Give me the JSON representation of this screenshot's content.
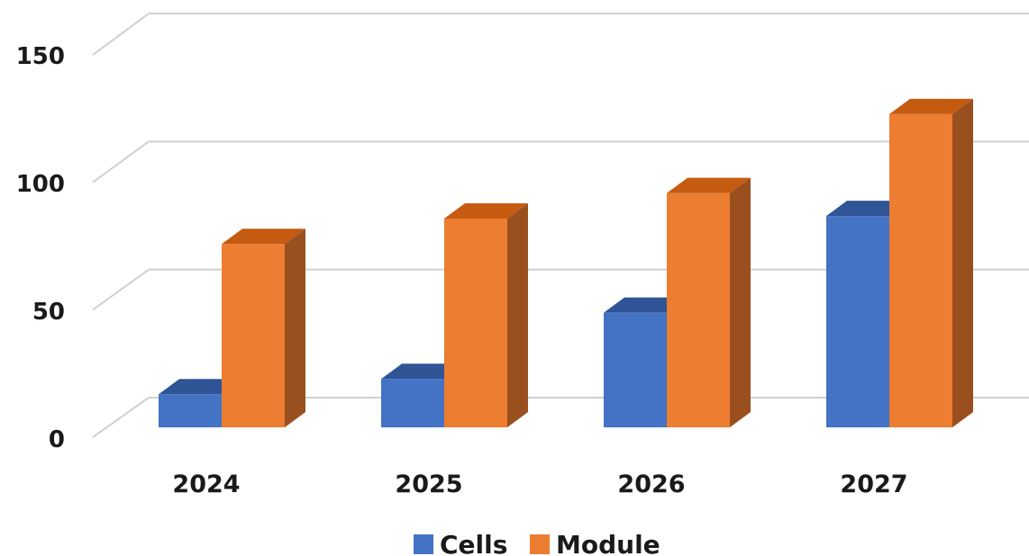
{
  "chart_data": {
    "type": "bar",
    "categories": [
      "2024",
      "2025",
      "2026",
      "2027"
    ],
    "series": [
      {
        "name": "Cells",
        "values": [
          13,
          19,
          45,
          83
        ],
        "color": "#4472C4",
        "color_top": "#2F5597",
        "color_side": "#2F5597"
      },
      {
        "name": "Module",
        "values": [
          72,
          82,
          92,
          123
        ],
        "color": "#ED7D31",
        "color_top": "#C55A11",
        "color_side": "#9A4F1E"
      }
    ],
    "y_ticks": [
      "0",
      "50",
      "100",
      "150"
    ],
    "ylim": [
      0,
      150
    ],
    "grid": true,
    "legend_position": "bottom",
    "title": "",
    "xlabel": "",
    "ylabel": "",
    "style": "3d-clustered-column"
  }
}
